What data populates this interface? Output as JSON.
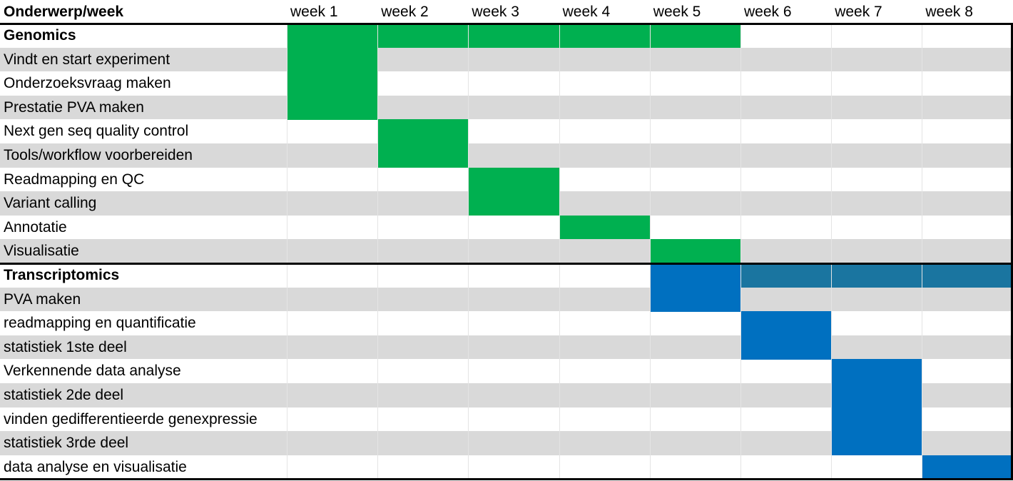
{
  "header": {
    "title": "Onderwerp/week",
    "weeks": [
      "week 1",
      "week 2",
      "week 3",
      "week 4",
      "week 5",
      "week 6",
      "week 7",
      "week 8"
    ]
  },
  "rows": [
    {
      "label": "Genomics",
      "bold": true,
      "shaded": false,
      "bars": [
        {
          "start": 1,
          "end": 5,
          "color": "#00b050"
        }
      ]
    },
    {
      "label": "Vindt en start experiment",
      "bold": false,
      "shaded": true,
      "bars": [
        {
          "start": 1,
          "end": 1,
          "color": "#00b050"
        }
      ]
    },
    {
      "label": "Onderzoeksvraag maken",
      "bold": false,
      "shaded": false,
      "bars": [
        {
          "start": 1,
          "end": 1,
          "color": "#00b050"
        }
      ]
    },
    {
      "label": "Prestatie PVA maken",
      "bold": false,
      "shaded": true,
      "bars": [
        {
          "start": 1,
          "end": 1,
          "color": "#00b050"
        }
      ]
    },
    {
      "label": "Next gen seq quality control",
      "bold": false,
      "shaded": false,
      "bars": [
        {
          "start": 2,
          "end": 2,
          "color": "#00b050"
        }
      ]
    },
    {
      "label": "Tools/workflow voorbereiden",
      "bold": false,
      "shaded": true,
      "bars": [
        {
          "start": 2,
          "end": 2,
          "color": "#00b050"
        }
      ]
    },
    {
      "label": "Readmapping en QC",
      "bold": false,
      "shaded": false,
      "bars": [
        {
          "start": 3,
          "end": 3,
          "color": "#00b050"
        }
      ]
    },
    {
      "label": "Variant calling",
      "bold": false,
      "shaded": true,
      "bars": [
        {
          "start": 3,
          "end": 3,
          "color": "#00b050"
        }
      ]
    },
    {
      "label": "Annotatie",
      "bold": false,
      "shaded": false,
      "bars": [
        {
          "start": 4,
          "end": 4,
          "color": "#00b050"
        }
      ]
    },
    {
      "label": "Visualisatie",
      "bold": false,
      "shaded": true,
      "bars": [
        {
          "start": 5,
          "end": 5,
          "color": "#00b050"
        }
      ]
    },
    {
      "label": "Transcriptomics",
      "bold": true,
      "shaded": false,
      "bars": [
        {
          "start": 5,
          "end": 5,
          "color": "#0070c0"
        },
        {
          "start": 6,
          "end": 8,
          "color": "#1a75a0"
        }
      ]
    },
    {
      "label": "PVA maken",
      "bold": false,
      "shaded": true,
      "bars": [
        {
          "start": 5,
          "end": 5,
          "color": "#0070c0"
        }
      ]
    },
    {
      "label": "readmapping en quantificatie",
      "bold": false,
      "shaded": false,
      "bars": [
        {
          "start": 6,
          "end": 6,
          "color": "#0070c0"
        }
      ]
    },
    {
      "label": "statistiek 1ste deel",
      "bold": false,
      "shaded": true,
      "bars": [
        {
          "start": 6,
          "end": 6,
          "color": "#0070c0"
        }
      ]
    },
    {
      "label": "Verkennende data analyse",
      "bold": false,
      "shaded": false,
      "bars": [
        {
          "start": 7,
          "end": 7,
          "color": "#0070c0"
        }
      ]
    },
    {
      "label": "statistiek 2de deel",
      "bold": false,
      "shaded": true,
      "bars": [
        {
          "start": 7,
          "end": 7,
          "color": "#0070c0"
        }
      ]
    },
    {
      "label": "vinden gedifferentieerde genexpressie",
      "bold": false,
      "shaded": false,
      "bars": [
        {
          "start": 7,
          "end": 7,
          "color": "#0070c0"
        }
      ]
    },
    {
      "label": "statistiek 3rde deel",
      "bold": false,
      "shaded": true,
      "bars": [
        {
          "start": 7,
          "end": 7,
          "color": "#0070c0"
        }
      ]
    },
    {
      "label": "data analyse en visualisatie",
      "bold": false,
      "shaded": false,
      "bars": [
        {
          "start": 8,
          "end": 8,
          "color": "#0070c0"
        }
      ]
    }
  ],
  "colors": {
    "genomics": "#00b050",
    "transcriptomics": "#0070c0",
    "row_shade": "#d9d9d9"
  }
}
